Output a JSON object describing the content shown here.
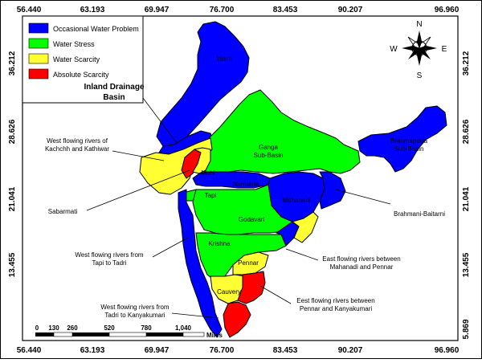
{
  "coords": {
    "top": [
      "56.440",
      "63.193",
      "69.947",
      "76.700",
      "83.453",
      "90.207",
      "96.960"
    ],
    "bottom": [
      "56.440",
      "63.193",
      "69.947",
      "76.700",
      "83.453",
      "90.207",
      "96.960"
    ],
    "left": [
      "36.212",
      "28.626",
      "21.041",
      "13.455"
    ],
    "right": [
      "36.212",
      "28.626",
      "21.041",
      "13.455",
      "5.869"
    ]
  },
  "legend": [
    {
      "label": "Occasional Water Problem",
      "color": "#0000ff"
    },
    {
      "label": "Water Stress",
      "color": "#00ff00"
    },
    {
      "label": "Water Scarcity",
      "color": "#ffff33"
    },
    {
      "label": "Absolute Scarcity",
      "color": "#ff0000"
    }
  ],
  "compass": {
    "n": "N",
    "s": "S",
    "e": "E",
    "w": "W"
  },
  "basins": {
    "indus": "Indus",
    "ganga": [
      "Ganga",
      "Sub-Basin"
    ],
    "brahmaputra": [
      "Brahmaputra",
      "Sub-Basin"
    ],
    "mahi": "Mahi",
    "narmada": "Narmada",
    "tapi": "Tapi",
    "mahanadi": "Mahanadi",
    "godavari": "Godavari",
    "krishna": "Krishna",
    "pennar": "Pennar",
    "cauvery": "Cauvery"
  },
  "callouts": {
    "inland": [
      "Inland Drainage",
      "Basin"
    ],
    "kachchh": [
      "West flowing rivers of",
      "Kachchh and Kathiwar"
    ],
    "sabarmati": "Sabarmati",
    "brahmani": "Brahmani-Baitarni",
    "west_tapi": [
      "West flowing rivers from",
      "Tapi to Tadri"
    ],
    "east_mp": [
      "East flowing rivers between",
      "Mahanadi  and Pennar"
    ],
    "east_pk": [
      "Eest flowing rivers between",
      "Pennar and Kanyakumari"
    ],
    "west_tadri": [
      "West flowing rivers from",
      "Tadri to Kanyakumari"
    ]
  },
  "scale": {
    "ticks": [
      "0",
      "130",
      "260",
      "520",
      "780",
      "1,040"
    ],
    "unit": "Miles"
  },
  "colors": {
    "blue": "#0000ff",
    "green": "#00ff00",
    "yellow": "#ffff33",
    "red": "#ff0000",
    "border": "#000000"
  }
}
